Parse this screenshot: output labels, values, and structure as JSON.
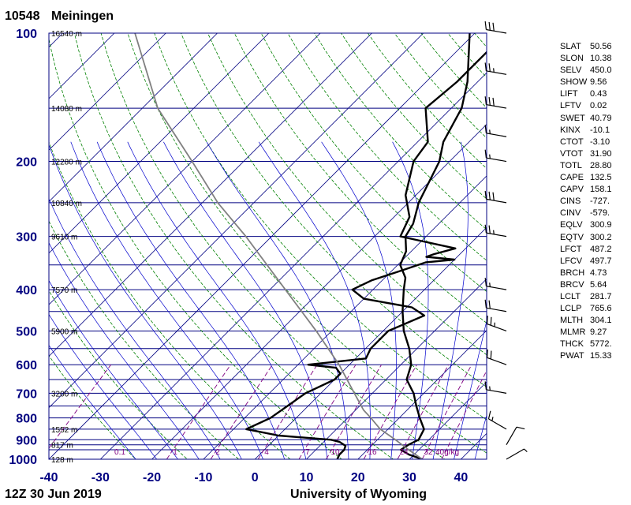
{
  "header": {
    "station_id": "10548",
    "station_name": "Meiningen"
  },
  "footer": {
    "time_label": "12Z 30 Jun 2019",
    "source_label": "University of Wyoming"
  },
  "colors": {
    "isobar": "#000080",
    "isotherm": "#000080",
    "dry_adiabat": "#008000",
    "moist_adiabat": "#0000cd",
    "mixing_ratio": "#800080",
    "sounding": "#000000",
    "parcel": "#808080",
    "pressure_labels": "#000080"
  },
  "indices": [
    {
      "key": "SLAT",
      "value": "50.56"
    },
    {
      "key": "SLON",
      "value": "10.38"
    },
    {
      "key": "SELV",
      "value": "450.0"
    },
    {
      "key": "SHOW",
      "value": "9.56"
    },
    {
      "key": "LIFT",
      "value": "0.43"
    },
    {
      "key": "LFTV",
      "value": "0.02"
    },
    {
      "key": "SWET",
      "value": "40.79"
    },
    {
      "key": "KINX",
      "value": "-10.1"
    },
    {
      "key": "CTOT",
      "value": "-3.10"
    },
    {
      "key": "VTOT",
      "value": "31.90"
    },
    {
      "key": "TOTL",
      "value": "28.80"
    },
    {
      "key": "CAPE",
      "value": "132.5"
    },
    {
      "key": "CAPV",
      "value": "158.1"
    },
    {
      "key": "CINS",
      "value": "-727."
    },
    {
      "key": "CINV",
      "value": "-579."
    },
    {
      "key": "EQLV",
      "value": "300.9"
    },
    {
      "key": "EQTV",
      "value": "300.2"
    },
    {
      "key": "LFCT",
      "value": "487.2"
    },
    {
      "key": "LFCV",
      "value": "497.7"
    },
    {
      "key": "BRCH",
      "value": "4.73"
    },
    {
      "key": "BRCV",
      "value": "5.64"
    },
    {
      "key": "LCLT",
      "value": "281.7"
    },
    {
      "key": "LCLP",
      "value": "765.6"
    },
    {
      "key": "MLTH",
      "value": "304.1"
    },
    {
      "key": "MLMR",
      "value": "9.27"
    },
    {
      "key": "THCK",
      "value": "5772."
    },
    {
      "key": "PWAT",
      "value": "15.33"
    }
  ],
  "chart_data": {
    "type": "line",
    "xlim": [
      -40,
      45
    ],
    "ylim": [
      1000,
      100
    ],
    "y_scale": "log",
    "x_ticks": [
      "-40",
      "-30",
      "-20",
      "-10",
      "0",
      "10",
      "20",
      "30",
      "40"
    ],
    "pressure_labels": [
      {
        "p": 100,
        "label": "100"
      },
      {
        "p": 200,
        "label": "200"
      },
      {
        "p": 300,
        "label": "300"
      },
      {
        "p": 400,
        "label": "400"
      },
      {
        "p": 500,
        "label": "500"
      },
      {
        "p": 600,
        "label": "600"
      },
      {
        "p": 700,
        "label": "700"
      },
      {
        "p": 800,
        "label": "800"
      },
      {
        "p": 900,
        "label": "900"
      },
      {
        "p": 1000,
        "label": "1000"
      }
    ],
    "isobars": [
      100,
      150,
      200,
      250,
      300,
      350,
      400,
      450,
      500,
      550,
      600,
      650,
      700,
      750,
      800,
      850,
      900,
      925,
      950,
      1000
    ],
    "height_labels": [
      {
        "p": 100,
        "label": "16540 m"
      },
      {
        "p": 150,
        "label": "14080 m"
      },
      {
        "p": 200,
        "label": "12280 m"
      },
      {
        "p": 250,
        "label": "10840 m"
      },
      {
        "p": 300,
        "label": "9610 m"
      },
      {
        "p": 400,
        "label": "7570 m"
      },
      {
        "p": 500,
        "label": "5900 m"
      },
      {
        "p": 700,
        "label": "3200 m"
      },
      {
        "p": 850,
        "label": "1552 m"
      },
      {
        "p": 925,
        "label": "817 m"
      },
      {
        "p": 1000,
        "label": "128 m"
      }
    ],
    "mixing_ratio_labels": [
      "0.1",
      "1",
      "2",
      "4",
      "7",
      "10",
      "16",
      "24",
      "32",
      "40g/kg"
    ],
    "series": [
      {
        "role": "temperature",
        "points": [
          [
            1000,
            32.5
          ],
          [
            975,
            29
          ],
          [
            950,
            26.5
          ],
          [
            925,
            27
          ],
          [
            900,
            28
          ],
          [
            850,
            27
          ],
          [
            800,
            24
          ],
          [
            750,
            21
          ],
          [
            700,
            18
          ],
          [
            650,
            14
          ],
          [
            600,
            12
          ],
          [
            550,
            8.5
          ],
          [
            500,
            4
          ],
          [
            450,
            0
          ],
          [
            400,
            -4
          ],
          [
            375,
            -6
          ],
          [
            350,
            -9.5
          ],
          [
            325,
            -11
          ],
          [
            300,
            -14
          ],
          [
            280,
            -15
          ],
          [
            250,
            -18
          ],
          [
            200,
            -22
          ],
          [
            180,
            -25
          ],
          [
            150,
            -28
          ],
          [
            130,
            -32
          ],
          [
            100,
            -41
          ]
        ]
      },
      {
        "role": "dewpoint",
        "points": [
          [
            1000,
            16
          ],
          [
            975,
            15.5
          ],
          [
            950,
            15.5
          ],
          [
            930,
            15
          ],
          [
            910,
            13
          ],
          [
            900,
            11
          ],
          [
            880,
            0
          ],
          [
            860,
            -5
          ],
          [
            850,
            -7.5
          ],
          [
            800,
            -5
          ],
          [
            750,
            -4
          ],
          [
            700,
            -3
          ],
          [
            650,
            0
          ],
          [
            630,
            0
          ],
          [
            610,
            -2
          ],
          [
            600,
            -8
          ],
          [
            580,
            2
          ],
          [
            550,
            1
          ],
          [
            500,
            1
          ],
          [
            460,
            5
          ],
          [
            440,
            1
          ],
          [
            420,
            -10
          ],
          [
            400,
            -14
          ],
          [
            380,
            -12
          ],
          [
            360,
            -8
          ],
          [
            345,
            -5
          ],
          [
            340,
            0
          ],
          [
            335,
            -6
          ],
          [
            330,
            -5
          ],
          [
            320,
            -2
          ],
          [
            300,
            -15
          ],
          [
            270,
            -17
          ],
          [
            240,
            -22
          ],
          [
            200,
            -27
          ],
          [
            180,
            -28
          ],
          [
            150,
            -35
          ],
          [
            130,
            -34
          ],
          [
            110,
            -34
          ],
          [
            100,
            -37
          ]
        ]
      },
      {
        "role": "parcel",
        "points": [
          [
            1000,
            32.5
          ],
          [
            950,
            28
          ],
          [
            900,
            23.5
          ],
          [
            850,
            18.5
          ],
          [
            800,
            14.5
          ],
          [
            766,
            11.5
          ],
          [
            700,
            6.5
          ],
          [
            600,
            -2
          ],
          [
            500,
            -13
          ],
          [
            400,
            -27
          ],
          [
            300,
            -45
          ],
          [
            250,
            -57
          ],
          [
            200,
            -70
          ],
          [
            150,
            -87
          ],
          [
            100,
            -106
          ]
        ]
      }
    ],
    "wind_barbs": [
      {
        "p": 1000,
        "dir": 60,
        "spd": 5
      },
      {
        "p": 925,
        "dir": 30,
        "spd": 10
      },
      {
        "p": 850,
        "dir": 300,
        "spd": 15
      },
      {
        "p": 700,
        "dir": 280,
        "spd": 15
      },
      {
        "p": 600,
        "dir": 290,
        "spd": 20
      },
      {
        "p": 500,
        "dir": 290,
        "spd": 25
      },
      {
        "p": 450,
        "dir": 280,
        "spd": 20
      },
      {
        "p": 400,
        "dir": 280,
        "spd": 15
      },
      {
        "p": 300,
        "dir": 280,
        "spd": 25
      },
      {
        "p": 250,
        "dir": 280,
        "spd": 30
      },
      {
        "p": 200,
        "dir": 280,
        "spd": 15
      },
      {
        "p": 175,
        "dir": 280,
        "spd": 15
      },
      {
        "p": 150,
        "dir": 280,
        "spd": 30
      },
      {
        "p": 125,
        "dir": 280,
        "spd": 25
      },
      {
        "p": 100,
        "dir": 280,
        "spd": 30
      }
    ]
  }
}
